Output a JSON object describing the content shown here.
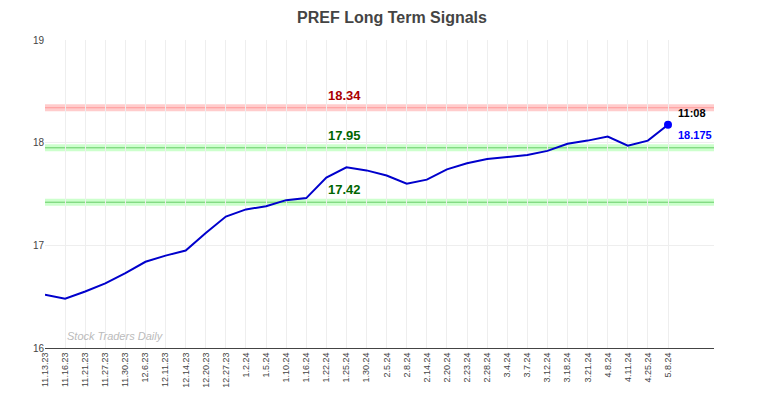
{
  "chart_data": {
    "type": "line",
    "title": "PREF Long Term Signals",
    "categories": [
      "11.13.23",
      "11.16.23",
      "11.21.23",
      "11.27.23",
      "11.30.23",
      "12.6.23",
      "12.11.23",
      "12.14.23",
      "12.20.23",
      "12.27.23",
      "1.2.24",
      "1.5.24",
      "1.10.24",
      "1.16.24",
      "1.22.24",
      "1.25.24",
      "1.30.24",
      "2.5.24",
      "2.8.24",
      "2.14.24",
      "2.20.24",
      "2.23.24",
      "2.28.24",
      "3.4.24",
      "3.7.24",
      "3.12.24",
      "3.18.24",
      "3.21.24",
      "4.8.24",
      "4.11.24",
      "4.25.24",
      "5.8.24"
    ],
    "values": [
      16.52,
      16.48,
      16.55,
      16.63,
      16.73,
      16.84,
      16.9,
      16.95,
      17.12,
      17.28,
      17.35,
      17.38,
      17.44,
      17.46,
      17.66,
      17.76,
      17.73,
      17.68,
      17.6,
      17.64,
      17.74,
      17.8,
      17.84,
      17.86,
      17.88,
      17.92,
      17.99,
      18.02,
      18.06,
      17.97,
      18.02,
      18.175
    ],
    "color": "#0000cc",
    "ylim": [
      16.0,
      19.0
    ],
    "yticks": [
      16,
      17,
      18,
      19
    ],
    "grid": true,
    "last_point": {
      "color": "#0000ff",
      "labels": [
        {
          "text": "11:08",
          "color": "#000000"
        },
        {
          "text": "18.175",
          "color": "#0000ff"
        }
      ]
    },
    "reference_lines": [
      {
        "value": 18.34,
        "label": "18.34",
        "color": "#ff9999",
        "band_color": "#ffcccc",
        "label_color": "#aa0000"
      },
      {
        "value": 17.95,
        "label": "17.95",
        "color": "#66cc66",
        "band_color": "#ccffcc",
        "label_color": "#006600"
      },
      {
        "value": 17.42,
        "label": "17.42",
        "color": "#66cc66",
        "band_color": "#ccffcc",
        "label_color": "#006600"
      }
    ],
    "watermark": {
      "text": "Stock Traders Daily",
      "color": "#bbbbbb"
    }
  }
}
